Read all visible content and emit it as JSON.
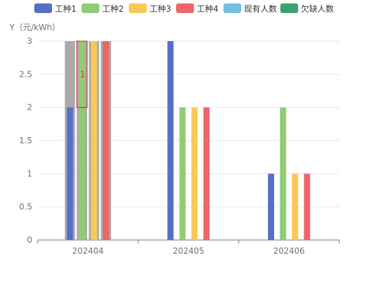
{
  "chart_data": {
    "type": "bar",
    "ylabel": "Y（元/kWh）",
    "categories": [
      "202404",
      "202405",
      "202406"
    ],
    "ylim": [
      0,
      3
    ],
    "yticks": [
      "0",
      "0.5",
      "1",
      "1.5",
      "2",
      "2.5",
      "3"
    ],
    "grid": true,
    "legend_position": "top",
    "series": [
      {
        "name": "工种1",
        "color": "#5470c6",
        "values": [
          2,
          3,
          1
        ]
      },
      {
        "name": "工种2",
        "color": "#91cc75",
        "values": [
          3,
          2,
          2
        ]
      },
      {
        "name": "工种3",
        "color": "#fac858",
        "values": [
          3,
          2,
          1
        ]
      },
      {
        "name": "工种4",
        "color": "#ee6666",
        "values": [
          3,
          2,
          1
        ]
      },
      {
        "name": "现有人数",
        "color": "#73c0de",
        "values": [
          null,
          null,
          null
        ]
      },
      {
        "name": "欠缺人数",
        "color": "#3ba272",
        "values": [
          null,
          null,
          null
        ]
      }
    ],
    "background_bars": {
      "color": "#aaaaaa",
      "values": [
        3,
        null,
        null
      ]
    },
    "annotation": {
      "category": "202404",
      "series": "工种2",
      "from": 2,
      "to": 3,
      "label": "1",
      "color": "#e03131"
    }
  }
}
